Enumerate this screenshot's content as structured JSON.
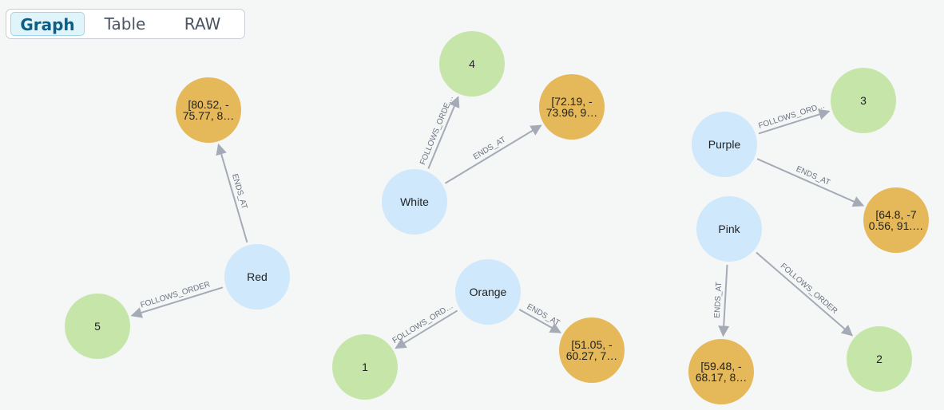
{
  "tabs": [
    "Graph",
    "Table",
    "RAW"
  ],
  "nodes": [
    {
      "lines": [
        "Red"
      ]
    },
    {
      "lines": [
        "5"
      ]
    },
    {
      "lines": [
        "[80.52, -",
        "75.77, 8…"
      ]
    },
    {
      "lines": [
        "White"
      ]
    },
    {
      "lines": [
        "4"
      ]
    },
    {
      "lines": [
        "[72.19, -",
        "73.96, 9…"
      ]
    },
    {
      "lines": [
        "Orange"
      ]
    },
    {
      "lines": [
        "1"
      ]
    },
    {
      "lines": [
        "[51.05, -",
        "60.27, 7…"
      ]
    },
    {
      "lines": [
        "Purple"
      ]
    },
    {
      "lines": [
        "3"
      ]
    },
    {
      "lines": [
        "[64.8, -7",
        "0.56, 91.…"
      ]
    },
    {
      "lines": [
        "Pink"
      ]
    },
    {
      "lines": [
        "2"
      ]
    },
    {
      "lines": [
        "[59.48, -",
        "68.17, 8…"
      ]
    }
  ],
  "edges": [
    {
      "label": "FOLLOWS_ORDER"
    },
    {
      "label": "ENDS_AT"
    },
    {
      "label": "FOLLOWS_ORDE…"
    },
    {
      "label": "ENDS_AT"
    },
    {
      "label": "FOLLOWS_ORD…"
    },
    {
      "label": "ENDS_AT"
    },
    {
      "label": "FOLLOWS_ORD…"
    },
    {
      "label": "ENDS_AT"
    },
    {
      "label": "ENDS_AT"
    },
    {
      "label": "FOLLOWS_ORDER"
    }
  ]
}
